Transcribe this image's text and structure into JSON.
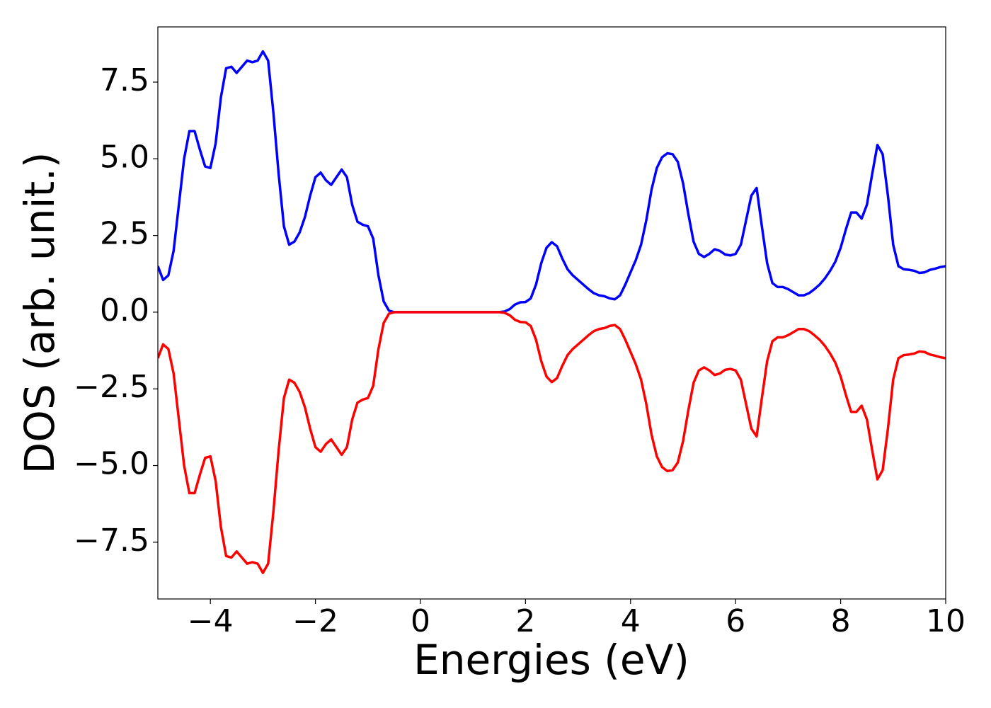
{
  "chart_data": {
    "type": "line",
    "xlabel": "Energies (eV)",
    "ylabel": "DOS (arb. unit.)",
    "x": [
      -5.0,
      -4.9,
      -4.8,
      -4.7,
      -4.6,
      -4.5,
      -4.4,
      -4.3,
      -4.2,
      -4.1,
      -4.0,
      -3.9,
      -3.8,
      -3.7,
      -3.6,
      -3.5,
      -3.4,
      -3.3,
      -3.2,
      -3.1,
      -3.0,
      -2.9,
      -2.8,
      -2.7,
      -2.6,
      -2.5,
      -2.4,
      -2.3,
      -2.2,
      -2.1,
      -2.0,
      -1.9,
      -1.8,
      -1.7,
      -1.6,
      -1.5,
      -1.4,
      -1.3,
      -1.2,
      -1.1,
      -1.0,
      -0.9,
      -0.8,
      -0.7,
      -0.6,
      -0.5,
      -0.4,
      -0.3,
      -0.2,
      -0.1,
      0.0,
      0.1,
      0.2,
      0.3,
      0.4,
      0.5,
      0.6,
      0.7,
      0.8,
      0.9,
      1.0,
      1.1,
      1.2,
      1.3,
      1.4,
      1.5,
      1.6,
      1.7,
      1.8,
      1.9,
      2.0,
      2.1,
      2.2,
      2.3,
      2.4,
      2.5,
      2.6,
      2.7,
      2.8,
      2.9,
      3.0,
      3.1,
      3.2,
      3.3,
      3.4,
      3.5,
      3.6,
      3.7,
      3.8,
      3.9,
      4.0,
      4.1,
      4.2,
      4.3,
      4.4,
      4.5,
      4.6,
      4.7,
      4.8,
      4.9,
      5.0,
      5.1,
      5.2,
      5.3,
      5.4,
      5.5,
      5.6,
      5.7,
      5.8,
      5.9,
      6.0,
      6.1,
      6.2,
      6.3,
      6.4,
      6.5,
      6.6,
      6.7,
      6.8,
      6.9,
      7.0,
      7.1,
      7.2,
      7.3,
      7.4,
      7.5,
      7.6,
      7.7,
      7.8,
      7.9,
      8.0,
      8.1,
      8.2,
      8.3,
      8.4,
      8.5,
      8.6,
      8.7,
      8.8,
      8.9,
      9.0,
      9.1,
      9.2,
      9.3,
      9.4,
      9.5,
      9.6,
      9.7,
      9.8,
      9.9,
      10.0
    ],
    "series": [
      {
        "color": "#0000ff",
        "values": [
          1.5,
          1.05,
          1.2,
          2.0,
          3.5,
          5.0,
          5.9,
          5.9,
          5.3,
          4.75,
          4.7,
          5.5,
          7.0,
          7.95,
          8.0,
          7.8,
          8.0,
          8.2,
          8.15,
          8.2,
          8.5,
          8.2,
          6.5,
          4.5,
          2.8,
          2.2,
          2.3,
          2.6,
          3.1,
          3.8,
          4.4,
          4.55,
          4.3,
          4.15,
          4.4,
          4.65,
          4.4,
          3.5,
          2.95,
          2.85,
          2.8,
          2.4,
          1.2,
          0.35,
          0.05,
          0,
          0,
          0,
          0,
          0,
          0,
          0,
          0,
          0,
          0,
          0,
          0,
          0,
          0,
          0,
          0,
          0,
          0,
          0,
          0,
          0,
          0.02,
          0.1,
          0.25,
          0.32,
          0.33,
          0.45,
          0.9,
          1.6,
          2.1,
          2.28,
          2.15,
          1.75,
          1.4,
          1.2,
          1.05,
          0.9,
          0.75,
          0.62,
          0.55,
          0.52,
          0.45,
          0.42,
          0.55,
          0.9,
          1.3,
          1.7,
          2.2,
          3.0,
          4.0,
          4.7,
          5.05,
          5.18,
          5.15,
          4.9,
          4.2,
          3.2,
          2.3,
          1.9,
          1.8,
          1.9,
          2.05,
          2.0,
          1.88,
          1.85,
          1.9,
          2.2,
          3.0,
          3.8,
          4.05,
          2.8,
          1.6,
          0.95,
          0.82,
          0.82,
          0.75,
          0.65,
          0.55,
          0.55,
          0.62,
          0.75,
          0.9,
          1.1,
          1.35,
          1.65,
          2.1,
          2.7,
          3.25,
          3.25,
          3.05,
          3.5,
          4.5,
          5.45,
          5.15,
          3.8,
          2.2,
          1.5,
          1.4,
          1.38,
          1.35,
          1.28,
          1.3,
          1.38,
          1.42,
          1.47,
          1.5
        ]
      },
      {
        "color": "#ff0000",
        "values": [
          -1.5,
          -1.05,
          -1.2,
          -2.0,
          -3.5,
          -5.0,
          -5.9,
          -5.9,
          -5.3,
          -4.75,
          -4.7,
          -5.5,
          -7.0,
          -7.95,
          -8.0,
          -7.8,
          -8.0,
          -8.2,
          -8.15,
          -8.2,
          -8.5,
          -8.2,
          -6.5,
          -4.5,
          -2.8,
          -2.2,
          -2.3,
          -2.6,
          -3.1,
          -3.8,
          -4.4,
          -4.55,
          -4.3,
          -4.15,
          -4.4,
          -4.65,
          -4.4,
          -3.5,
          -2.95,
          -2.85,
          -2.8,
          -2.4,
          -1.2,
          -0.35,
          -0.05,
          0,
          0,
          0,
          0,
          0,
          0,
          0,
          0,
          0,
          0,
          0,
          0,
          0,
          0,
          0,
          0,
          0,
          0,
          0,
          0,
          0,
          -0.02,
          -0.1,
          -0.25,
          -0.32,
          -0.33,
          -0.45,
          -0.9,
          -1.6,
          -2.1,
          -2.28,
          -2.15,
          -1.75,
          -1.4,
          -1.2,
          -1.05,
          -0.9,
          -0.75,
          -0.62,
          -0.55,
          -0.52,
          -0.45,
          -0.42,
          -0.55,
          -0.9,
          -1.3,
          -1.7,
          -2.2,
          -3.0,
          -4.0,
          -4.7,
          -5.05,
          -5.18,
          -5.15,
          -4.9,
          -4.2,
          -3.2,
          -2.3,
          -1.9,
          -1.8,
          -1.9,
          -2.05,
          -2.0,
          -1.88,
          -1.85,
          -1.9,
          -2.2,
          -3.0,
          -3.8,
          -4.05,
          -2.8,
          -1.6,
          -0.95,
          -0.82,
          -0.82,
          -0.75,
          -0.65,
          -0.55,
          -0.55,
          -0.62,
          -0.75,
          -0.9,
          -1.1,
          -1.35,
          -1.65,
          -2.1,
          -2.7,
          -3.25,
          -3.25,
          -3.05,
          -3.5,
          -4.5,
          -5.45,
          -5.15,
          -3.8,
          -2.2,
          -1.5,
          -1.4,
          -1.38,
          -1.35,
          -1.28,
          -1.3,
          -1.38,
          -1.42,
          -1.47,
          -1.5
        ]
      }
    ],
    "xlim": [
      -5,
      10
    ],
    "xticks": [
      {
        "value": -4,
        "label": "−4"
      },
      {
        "value": -2,
        "label": "−2"
      },
      0,
      2,
      4,
      6,
      8,
      10
    ],
    "ylim": [
      -9.35,
      9.3
    ],
    "yticks": [
      {
        "value": -7.5,
        "label": "−7.5"
      },
      {
        "value": -5,
        "label": "−5.0"
      },
      {
        "value": -2.5,
        "label": "−2.5"
      },
      {
        "value": 0,
        "label": "0.0"
      },
      2.5,
      {
        "value": 5,
        "label": "5.0"
      },
      7.5
    ]
  }
}
